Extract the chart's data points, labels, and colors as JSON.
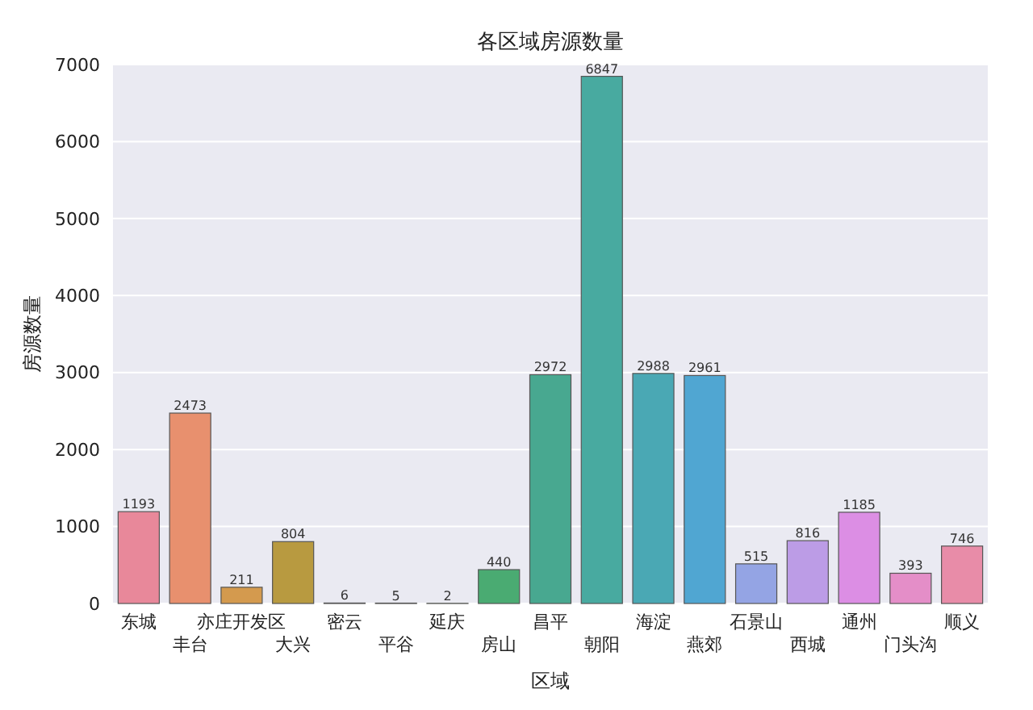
{
  "chart_data": {
    "type": "bar",
    "title": "各区域房源数量",
    "xlabel": "区域",
    "ylabel": "房源数量",
    "categories": [
      "东城",
      "丰台",
      "亦庄开发区",
      "大兴",
      "密云",
      "平谷",
      "延庆",
      "房山",
      "昌平",
      "朝阳",
      "海淀",
      "燕郊",
      "石景山",
      "西城",
      "通州",
      "门头沟",
      "顺义"
    ],
    "values": [
      1193,
      2473,
      211,
      804,
      6,
      5,
      2,
      440,
      2972,
      6847,
      2988,
      2961,
      515,
      816,
      1185,
      393,
      746
    ],
    "colors": [
      "#e8889a",
      "#e8906e",
      "#d49a4e",
      "#b89a40",
      "#a8a040",
      "#90a840",
      "#6ab048",
      "#4aab72",
      "#48a890",
      "#48aaa0",
      "#4aa8b4",
      "#50a6d2",
      "#94a4e4",
      "#bc9ce6",
      "#dc8ee4",
      "#e48ec8",
      "#e88ca8"
    ],
    "ylim": [
      0,
      7000
    ],
    "yticks": [
      0,
      1000,
      2000,
      3000,
      4000,
      5000,
      6000,
      7000
    ],
    "grid": "y",
    "data_labels": true
  }
}
